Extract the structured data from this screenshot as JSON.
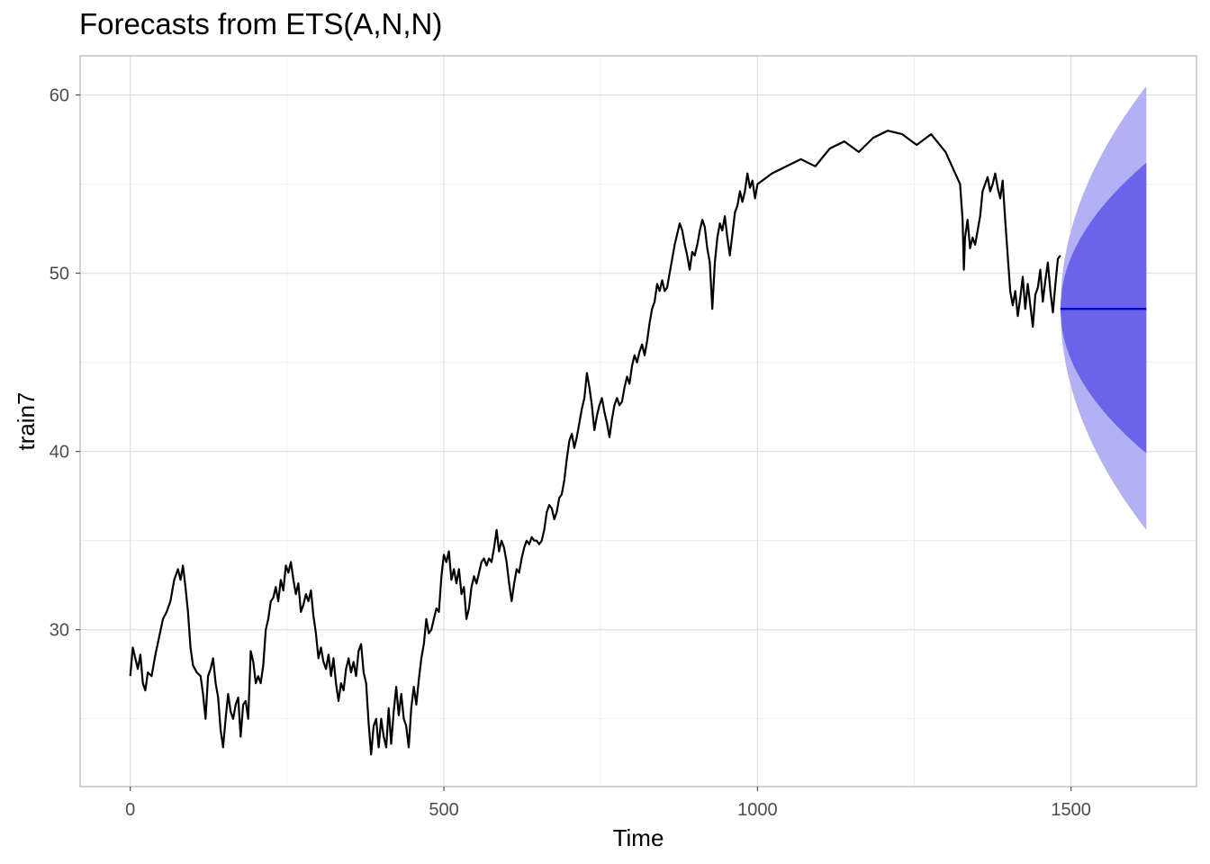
{
  "chart_data": {
    "type": "line",
    "title": "Forecasts from ETS(A,N,N)",
    "xlabel": "Time",
    "ylabel": "train7",
    "xlim": [
      -80,
      1700
    ],
    "ylim": [
      21.2,
      62.2
    ],
    "x_ticks": [
      0,
      500,
      1000,
      1500
    ],
    "y_ticks": [
      30,
      40,
      50,
      60
    ],
    "grid": true,
    "legend": "none",
    "colors": {
      "series": "#000000",
      "forecast_line": "#0000cc",
      "pi80": "#6b63ea",
      "pi95": "#b3b1f3",
      "grid": "#dcdcdc",
      "panel_border": "#b3b3b3"
    },
    "series": [
      {
        "points": [
          [
            0,
            27.4
          ],
          [
            4,
            29.0
          ],
          [
            8,
            28.4
          ],
          [
            12,
            27.8
          ],
          [
            16,
            28.6
          ],
          [
            20,
            27.0
          ],
          [
            24,
            26.6
          ],
          [
            28,
            27.6
          ],
          [
            34,
            27.4
          ],
          [
            40,
            28.6
          ],
          [
            46,
            29.6
          ],
          [
            52,
            30.6
          ],
          [
            58,
            31.0
          ],
          [
            64,
            31.6
          ],
          [
            70,
            32.8
          ],
          [
            76,
            33.4
          ],
          [
            80,
            32.8
          ],
          [
            84,
            33.6
          ],
          [
            88,
            32.4
          ],
          [
            92,
            31.0
          ],
          [
            96,
            29.0
          ],
          [
            100,
            28.0
          ],
          [
            106,
            27.6
          ],
          [
            112,
            27.4
          ],
          [
            116,
            26.4
          ],
          [
            120,
            25.0
          ],
          [
            124,
            27.4
          ],
          [
            128,
            27.8
          ],
          [
            132,
            28.4
          ],
          [
            136,
            27.0
          ],
          [
            140,
            26.2
          ],
          [
            144,
            24.4
          ],
          [
            148,
            23.4
          ],
          [
            152,
            25.0
          ],
          [
            156,
            26.4
          ],
          [
            160,
            25.4
          ],
          [
            164,
            25.0
          ],
          [
            168,
            25.8
          ],
          [
            172,
            26.2
          ],
          [
            176,
            24.0
          ],
          [
            180,
            25.8
          ],
          [
            184,
            26.0
          ],
          [
            188,
            25.0
          ],
          [
            192,
            28.8
          ],
          [
            196,
            28.2
          ],
          [
            200,
            27.0
          ],
          [
            204,
            27.4
          ],
          [
            208,
            27.0
          ],
          [
            212,
            28.0
          ],
          [
            216,
            30.0
          ],
          [
            220,
            30.6
          ],
          [
            224,
            31.6
          ],
          [
            228,
            31.8
          ],
          [
            232,
            32.4
          ],
          [
            236,
            31.6
          ],
          [
            240,
            32.8
          ],
          [
            244,
            32.2
          ],
          [
            248,
            33.6
          ],
          [
            252,
            33.2
          ],
          [
            256,
            33.8
          ],
          [
            260,
            32.8
          ],
          [
            264,
            32.0
          ],
          [
            268,
            32.6
          ],
          [
            272,
            31.0
          ],
          [
            276,
            31.4
          ],
          [
            280,
            32.0
          ],
          [
            284,
            31.6
          ],
          [
            288,
            32.2
          ],
          [
            292,
            30.8
          ],
          [
            296,
            29.8
          ],
          [
            300,
            28.4
          ],
          [
            304,
            29.0
          ],
          [
            308,
            28.2
          ],
          [
            312,
            27.8
          ],
          [
            316,
            28.6
          ],
          [
            320,
            27.4
          ],
          [
            324,
            28.4
          ],
          [
            328,
            27.0
          ],
          [
            332,
            26.0
          ],
          [
            336,
            27.0
          ],
          [
            340,
            26.6
          ],
          [
            344,
            27.8
          ],
          [
            348,
            28.4
          ],
          [
            352,
            27.6
          ],
          [
            356,
            28.2
          ],
          [
            360,
            27.4
          ],
          [
            364,
            28.8
          ],
          [
            368,
            29.2
          ],
          [
            372,
            27.6
          ],
          [
            376,
            27.0
          ],
          [
            380,
            24.8
          ],
          [
            384,
            23.0
          ],
          [
            388,
            24.6
          ],
          [
            392,
            25.0
          ],
          [
            396,
            23.4
          ],
          [
            400,
            25.0
          ],
          [
            404,
            24.0
          ],
          [
            408,
            23.4
          ],
          [
            412,
            25.6
          ],
          [
            416,
            23.6
          ],
          [
            420,
            25.4
          ],
          [
            424,
            26.8
          ],
          [
            428,
            25.2
          ],
          [
            432,
            26.4
          ],
          [
            436,
            25.0
          ],
          [
            440,
            24.6
          ],
          [
            444,
            23.4
          ],
          [
            448,
            25.6
          ],
          [
            452,
            26.8
          ],
          [
            456,
            25.8
          ],
          [
            460,
            27.2
          ],
          [
            464,
            28.4
          ],
          [
            468,
            29.2
          ],
          [
            472,
            30.6
          ],
          [
            476,
            29.8
          ],
          [
            480,
            30.0
          ],
          [
            484,
            30.6
          ],
          [
            488,
            31.2
          ],
          [
            492,
            31.0
          ],
          [
            496,
            33.0
          ],
          [
            500,
            34.2
          ],
          [
            504,
            33.8
          ],
          [
            508,
            34.4
          ],
          [
            512,
            32.8
          ],
          [
            516,
            33.4
          ],
          [
            520,
            32.6
          ],
          [
            524,
            33.4
          ],
          [
            528,
            32.0
          ],
          [
            532,
            32.4
          ],
          [
            536,
            30.6
          ],
          [
            540,
            31.2
          ],
          [
            544,
            32.4
          ],
          [
            548,
            33.0
          ],
          [
            552,
            32.6
          ],
          [
            556,
            33.2
          ],
          [
            560,
            33.8
          ],
          [
            564,
            34.0
          ],
          [
            568,
            33.6
          ],
          [
            572,
            34.0
          ],
          [
            576,
            33.8
          ],
          [
            580,
            34.6
          ],
          [
            584,
            35.6
          ],
          [
            588,
            34.4
          ],
          [
            592,
            35.0
          ],
          [
            596,
            34.6
          ],
          [
            600,
            33.8
          ],
          [
            604,
            32.6
          ],
          [
            608,
            31.6
          ],
          [
            612,
            32.6
          ],
          [
            616,
            33.4
          ],
          [
            620,
            33.2
          ],
          [
            624,
            34.0
          ],
          [
            628,
            34.6
          ],
          [
            632,
            35.0
          ],
          [
            636,
            34.8
          ],
          [
            640,
            35.2
          ],
          [
            644,
            35.0
          ],
          [
            648,
            35.0
          ],
          [
            652,
            34.8
          ],
          [
            656,
            35.0
          ],
          [
            660,
            35.6
          ],
          [
            664,
            36.6
          ],
          [
            668,
            37.0
          ],
          [
            672,
            36.8
          ],
          [
            676,
            36.2
          ],
          [
            680,
            36.6
          ],
          [
            684,
            37.4
          ],
          [
            688,
            37.6
          ],
          [
            692,
            38.4
          ],
          [
            696,
            39.6
          ],
          [
            700,
            40.6
          ],
          [
            704,
            41.0
          ],
          [
            708,
            40.2
          ],
          [
            712,
            40.8
          ],
          [
            716,
            41.6
          ],
          [
            720,
            42.4
          ],
          [
            724,
            43.0
          ],
          [
            728,
            44.4
          ],
          [
            732,
            43.6
          ],
          [
            736,
            42.6
          ],
          [
            740,
            41.2
          ],
          [
            744,
            42.0
          ],
          [
            748,
            42.6
          ],
          [
            752,
            43.0
          ],
          [
            756,
            42.2
          ],
          [
            760,
            41.6
          ],
          [
            764,
            40.8
          ],
          [
            768,
            41.8
          ],
          [
            772,
            42.6
          ],
          [
            776,
            43.0
          ],
          [
            780,
            42.6
          ],
          [
            784,
            42.8
          ],
          [
            788,
            43.6
          ],
          [
            792,
            44.2
          ],
          [
            796,
            43.8
          ],
          [
            800,
            44.8
          ],
          [
            804,
            45.4
          ],
          [
            808,
            45.0
          ],
          [
            812,
            45.6
          ],
          [
            816,
            46.0
          ],
          [
            820,
            45.4
          ],
          [
            824,
            46.2
          ],
          [
            828,
            47.2
          ],
          [
            832,
            48.0
          ],
          [
            836,
            48.4
          ],
          [
            840,
            49.4
          ],
          [
            844,
            49.0
          ],
          [
            848,
            49.6
          ],
          [
            852,
            49.0
          ],
          [
            856,
            49.2
          ],
          [
            860,
            50.0
          ],
          [
            864,
            50.8
          ],
          [
            868,
            51.6
          ],
          [
            872,
            52.2
          ],
          [
            876,
            52.8
          ],
          [
            880,
            52.4
          ],
          [
            884,
            51.6
          ],
          [
            888,
            51.0
          ],
          [
            892,
            50.2
          ],
          [
            896,
            51.2
          ],
          [
            900,
            51.0
          ],
          [
            904,
            51.6
          ],
          [
            908,
            52.4
          ],
          [
            912,
            53.0
          ],
          [
            916,
            52.6
          ],
          [
            920,
            51.4
          ],
          [
            924,
            50.6
          ],
          [
            928,
            48.0
          ],
          [
            932,
            50.6
          ],
          [
            936,
            52.0
          ],
          [
            940,
            52.8
          ],
          [
            944,
            52.4
          ],
          [
            948,
            53.2
          ],
          [
            952,
            52.0
          ],
          [
            956,
            51.0
          ],
          [
            960,
            52.2
          ],
          [
            964,
            53.4
          ],
          [
            968,
            53.8
          ],
          [
            972,
            54.6
          ],
          [
            976,
            54.0
          ],
          [
            980,
            54.6
          ],
          [
            984,
            55.6
          ],
          [
            988,
            54.8
          ],
          [
            992,
            55.2
          ],
          [
            996,
            54.2
          ],
          [
            1000,
            55.0
          ],
          [
            1004,
            55.6
          ],
          [
            1008,
            56.0
          ],
          [
            1012,
            56.4
          ],
          [
            1016,
            56.0
          ],
          [
            1020,
            57.0
          ],
          [
            1024,
            57.4
          ],
          [
            1028,
            56.8
          ],
          [
            1032,
            57.6
          ],
          [
            1036,
            58.0
          ],
          [
            1040,
            57.8
          ],
          [
            1044,
            57.2
          ],
          [
            1048,
            57.8
          ],
          [
            1052,
            56.8
          ],
          [
            1056,
            55.0
          ],
          [
            1060,
            53.0
          ],
          [
            1062,
            50.2
          ],
          [
            1064,
            52.0
          ],
          [
            1068,
            53.0
          ],
          [
            1072,
            51.4
          ],
          [
            1076,
            52.0
          ],
          [
            1080,
            51.6
          ],
          [
            1084,
            52.4
          ],
          [
            1088,
            53.2
          ],
          [
            1092,
            54.6
          ],
          [
            1096,
            55.0
          ],
          [
            1100,
            55.4
          ],
          [
            1104,
            54.6
          ],
          [
            1108,
            55.0
          ],
          [
            1112,
            55.6
          ],
          [
            1116,
            54.8
          ],
          [
            1120,
            54.2
          ],
          [
            1124,
            55.2
          ],
          [
            1128,
            53.0
          ],
          [
            1132,
            51.0
          ],
          [
            1136,
            49.0
          ],
          [
            1140,
            48.2
          ],
          [
            1144,
            49.0
          ],
          [
            1148,
            47.6
          ],
          [
            1152,
            48.6
          ],
          [
            1156,
            49.8
          ],
          [
            1160,
            48.0
          ],
          [
            1164,
            49.4
          ],
          [
            1168,
            48.2
          ],
          [
            1172,
            47.0
          ],
          [
            1176,
            48.8
          ],
          [
            1180,
            49.2
          ],
          [
            1184,
            50.2
          ],
          [
            1188,
            48.4
          ],
          [
            1192,
            49.6
          ],
          [
            1196,
            50.6
          ],
          [
            1200,
            49.0
          ],
          [
            1204,
            47.8
          ],
          [
            1208,
            49.4
          ],
          [
            1212,
            50.8
          ],
          [
            1216,
            51.0
          ]
        ],
        "note_x_offset": 267
      }
    ],
    "forecast": {
      "x": [
        1483,
        1620
      ],
      "mean": 48.0,
      "pi80": {
        "upper_end": 56.2,
        "lower_end": 39.9
      },
      "pi95": {
        "upper_end": 60.5,
        "lower_end": 35.6
      }
    }
  }
}
